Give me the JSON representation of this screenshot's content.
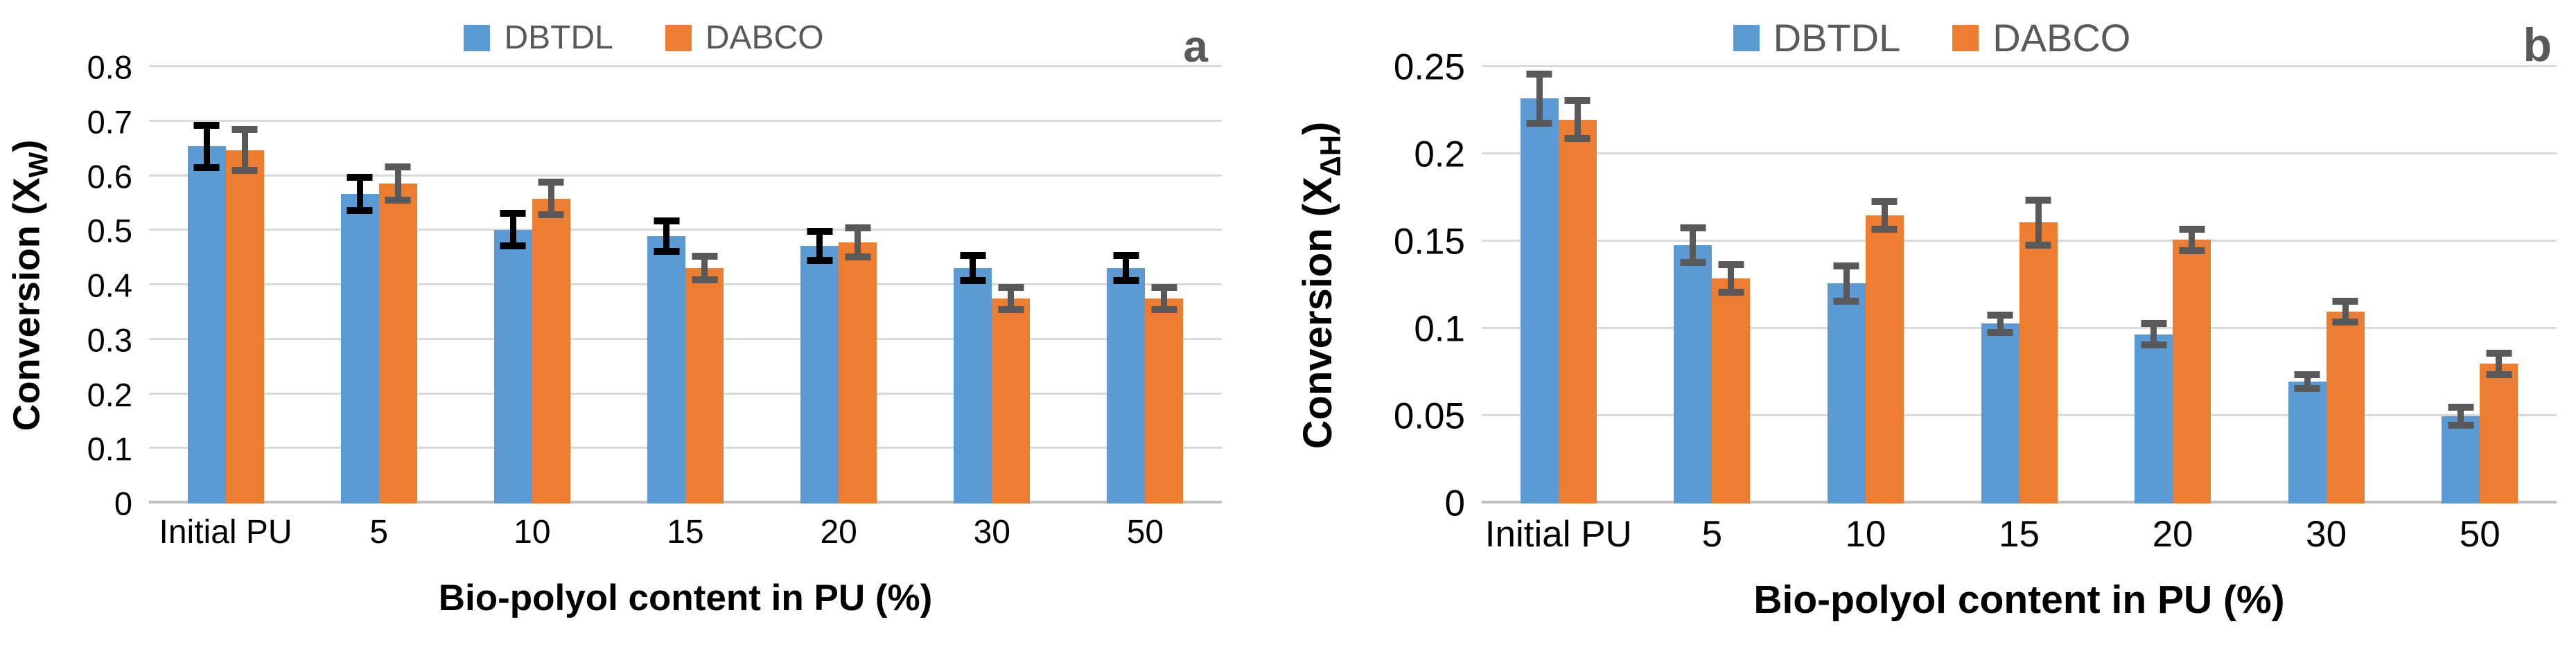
{
  "chart_data": [
    {
      "type": "bar",
      "panel_label": "a",
      "categories": [
        "Initial PU",
        "5",
        "10",
        "15",
        "20",
        "30",
        "50"
      ],
      "series": [
        {
          "name": "DBTDL",
          "color": "#5B9BD5",
          "error_color": "#000000",
          "values": [
            0.655,
            0.568,
            0.502,
            0.49,
            0.472,
            0.432,
            0.432
          ],
          "errors": [
            0.045,
            0.037,
            0.036,
            0.034,
            0.033,
            0.029,
            0.029
          ]
        },
        {
          "name": "DABCO",
          "color": "#ED7D31",
          "error_color": "#595959",
          "values": [
            0.648,
            0.587,
            0.559,
            0.432,
            0.479,
            0.376,
            0.376
          ],
          "errors": [
            0.044,
            0.037,
            0.036,
            0.028,
            0.033,
            0.027,
            0.027
          ]
        }
      ],
      "xlabel": "Bio-polyol content in PU (%)",
      "ylabel_main": "Conversion (X",
      "ylabel_sub": "W",
      "ylabel_close": ")",
      "ylim": [
        0,
        0.8
      ],
      "yticks": [
        {
          "v": 0,
          "label": "0"
        },
        {
          "v": 0.1,
          "label": "0.1"
        },
        {
          "v": 0.2,
          "label": "0.2"
        },
        {
          "v": 0.3,
          "label": "0.3"
        },
        {
          "v": 0.4,
          "label": "0.4"
        },
        {
          "v": 0.5,
          "label": "0.5"
        },
        {
          "v": 0.6,
          "label": "0.6"
        },
        {
          "v": 0.7,
          "label": "0.7"
        },
        {
          "v": 0.8,
          "label": "0.8"
        }
      ],
      "grid": true,
      "legend_position": "top"
    },
    {
      "type": "bar",
      "panel_label": "b",
      "categories": [
        "Initial PU",
        "5",
        "10",
        "15",
        "20",
        "30",
        "50"
      ],
      "series": [
        {
          "name": "DBTDL",
          "color": "#5B9BD5",
          "error_color": "#595959",
          "values": [
            0.232,
            0.148,
            0.126,
            0.103,
            0.097,
            0.07,
            0.05
          ],
          "errors": [
            0.016,
            0.012,
            0.012,
            0.007,
            0.008,
            0.006,
            0.007
          ]
        },
        {
          "name": "DABCO",
          "color": "#ED7D31",
          "error_color": "#595959",
          "values": [
            0.22,
            0.129,
            0.165,
            0.161,
            0.151,
            0.11,
            0.08
          ],
          "errors": [
            0.013,
            0.01,
            0.01,
            0.015,
            0.008,
            0.008,
            0.008
          ]
        }
      ],
      "xlabel": "Bio-polyol content in PU (%)",
      "ylabel_main": "Conversion (X",
      "ylabel_sub": "ΔH",
      "ylabel_close": ")",
      "ylim": [
        0,
        0.25
      ],
      "yticks": [
        {
          "v": 0,
          "label": "0"
        },
        {
          "v": 0.05,
          "label": "0.05"
        },
        {
          "v": 0.1,
          "label": "0.1"
        },
        {
          "v": 0.15,
          "label": "0.15"
        },
        {
          "v": 0.2,
          "label": "0.2"
        },
        {
          "v": 0.25,
          "label": "0.25"
        }
      ],
      "grid": true,
      "legend_position": "top"
    }
  ],
  "colors": {
    "background": "#FFFFFF",
    "gridline": "#D9D9D9",
    "axis_line": "#BFBFBF",
    "axis_text": "#000000",
    "legend_text": "#595959",
    "panel_letter": "#595959"
  }
}
